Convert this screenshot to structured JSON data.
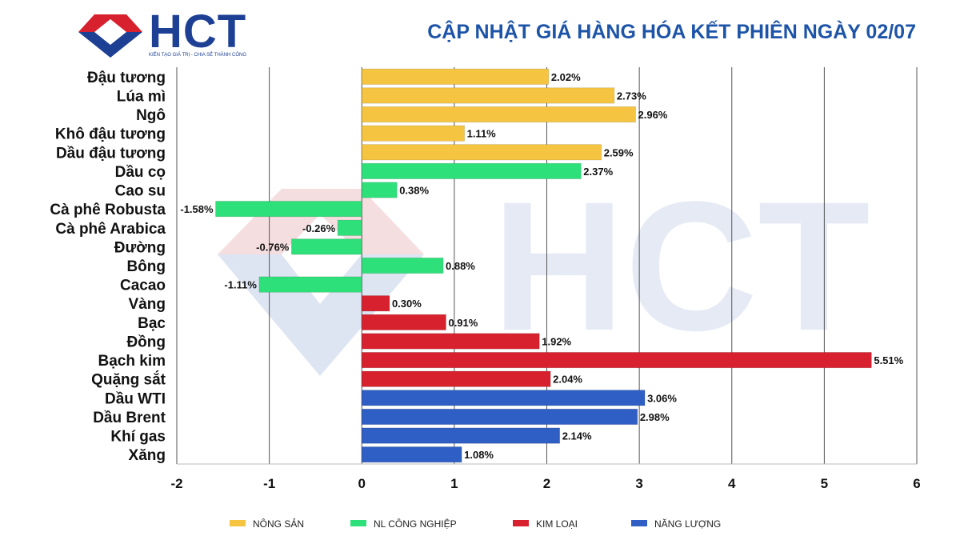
{
  "brand": {
    "logo_text": "HCT",
    "tagline": "KIẾN TẠO GIÁ TRỊ - CHIA SẺ THÀNH CÔNG"
  },
  "title": "CẬP NHẬT GIÁ HÀNG HÓA KẾT PHIÊN NGÀY 02/07",
  "colors": {
    "nong_san": "#f5c542",
    "nl_cong_nghiep": "#2ee07a",
    "kim_loai": "#d7212e",
    "nang_luong": "#2f5fc4",
    "title": "#1d54a8"
  },
  "chart_data": {
    "type": "bar",
    "orientation": "horizontal",
    "categories": [
      "Đậu tương",
      "Lúa mì",
      "Ngô",
      "Khô đậu tương",
      "Dầu đậu tương",
      "Dầu cọ",
      "Cao su",
      "Cà phê Robusta",
      "Cà phê Arabica",
      "Đường",
      "Bông",
      "Cacao",
      "Vàng",
      "Bạc",
      "Đồng",
      "Bạch kim",
      "Quặng sắt",
      "Dầu WTI",
      "Dầu Brent",
      "Khí gas",
      "Xăng"
    ],
    "values": [
      2.02,
      2.73,
      2.96,
      1.11,
      2.59,
      2.37,
      0.38,
      -1.58,
      -0.26,
      -0.76,
      0.88,
      -1.11,
      0.3,
      0.91,
      1.92,
      5.51,
      2.04,
      3.06,
      2.98,
      2.14,
      1.08
    ],
    "value_labels": [
      "2.02%",
      "2.73%",
      "2.96%",
      "1.11%",
      "2.59%",
      "2.37%",
      "0.38%",
      "-1.58%",
      "-0.26%",
      "-0.76%",
      "0.88%",
      "-1.11%",
      "0.30%",
      "0.91%",
      "1.92%",
      "5.51%",
      "2.04%",
      "3.06%",
      "2.98%",
      "2.14%",
      "1.08%"
    ],
    "groups": [
      "nong_san",
      "nong_san",
      "nong_san",
      "nong_san",
      "nong_san",
      "nl_cong_nghiep",
      "nl_cong_nghiep",
      "nl_cong_nghiep",
      "nl_cong_nghiep",
      "nl_cong_nghiep",
      "nl_cong_nghiep",
      "nl_cong_nghiep",
      "kim_loai",
      "kim_loai",
      "kim_loai",
      "kim_loai",
      "kim_loai",
      "nang_luong",
      "nang_luong",
      "nang_luong",
      "nang_luong"
    ],
    "xlim": [
      -2,
      6
    ],
    "xticks": [
      "-2",
      "-1",
      "0",
      "1",
      "2",
      "3",
      "4",
      "5",
      "6"
    ],
    "grid": "vertical",
    "legend": {
      "placement": "bottom",
      "entries": [
        {
          "key": "nong_san",
          "label": "NÔNG SẢN"
        },
        {
          "key": "nl_cong_nghiep",
          "label": "NL CÔNG NGHIỆP"
        },
        {
          "key": "kim_loai",
          "label": "KIM LOẠI"
        },
        {
          "key": "nang_luong",
          "label": "NĂNG LƯỢNG"
        }
      ]
    }
  }
}
